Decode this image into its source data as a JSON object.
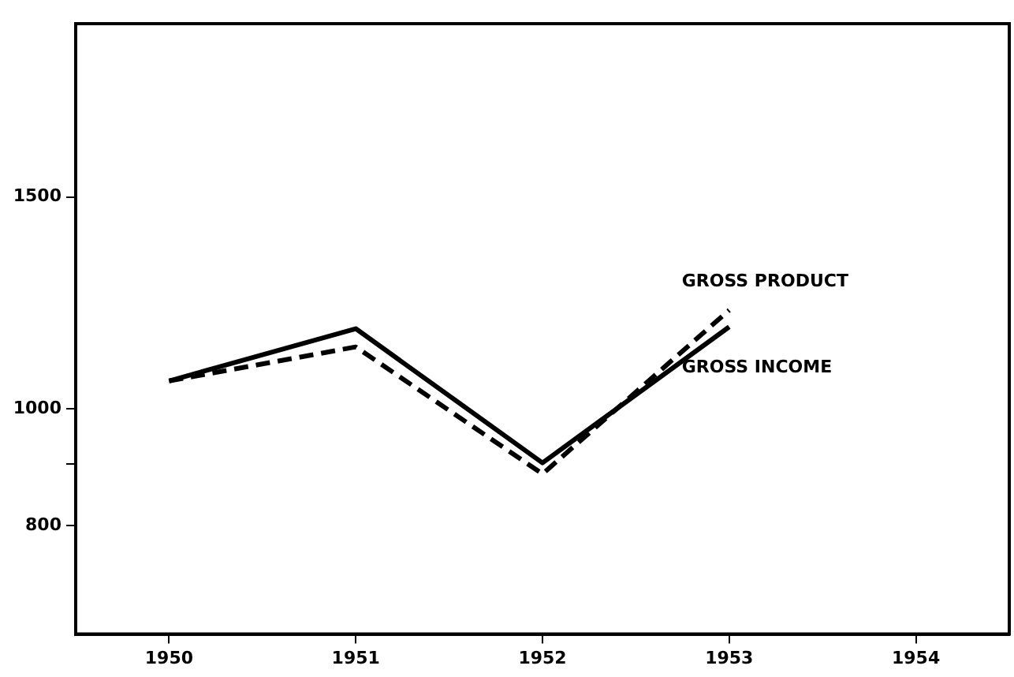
{
  "chart_data": {
    "type": "line",
    "x": [
      1950,
      1951,
      1952,
      1953
    ],
    "series": [
      {
        "name": "GROSS PRODUCT",
        "color": "#000000",
        "line_style": "dashed",
        "values": [
          1055,
          1126,
          883,
          1208
        ]
      },
      {
        "name": "GROSS INCOME",
        "color": "#000000",
        "line_style": "solid",
        "values": [
          1055,
          1166,
          902,
          1170
        ]
      }
    ],
    "log": "y",
    "xlim": [
      1949.5,
      1954.5
    ],
    "xticks": [
      1950,
      1951,
      1952,
      1953,
      1954
    ],
    "ylim": [
      650,
      2090
    ],
    "yticks": [
      800,
      {
        "value": 900,
        "label": null
      },
      1000,
      1500
    ],
    "grid": false,
    "legend": false,
    "marker": "none"
  }
}
